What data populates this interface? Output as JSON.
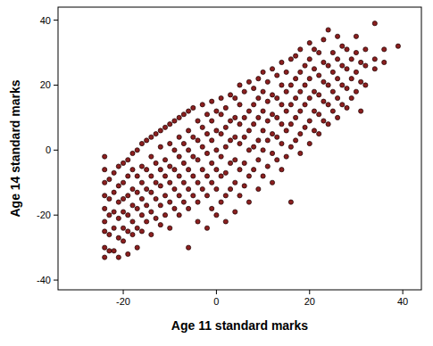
{
  "chart_data": {
    "type": "scatter",
    "x_label": "Age 11 standard marks",
    "y_label": "Age 14 standard marks",
    "color": "#8b1f1f",
    "marker": "circle",
    "grid": false,
    "xlim": [
      -34,
      44
    ],
    "ylim": [
      -43,
      44
    ],
    "xticks": [
      -20,
      0,
      20,
      40
    ],
    "yticks": [
      -40,
      -20,
      0,
      20,
      40
    ],
    "x": [
      -24,
      -24,
      -24,
      -24,
      -24,
      -24,
      -24,
      -24,
      -24,
      -23,
      -23,
      -23,
      -23,
      -23,
      -22,
      -22,
      -22,
      -22,
      -22,
      -21,
      -21,
      -21,
      -21,
      -21,
      -21,
      -20,
      -20,
      -20,
      -20,
      -20,
      -20,
      -19,
      -19,
      -19,
      -19,
      -19,
      -19,
      -18,
      -18,
      -18,
      -18,
      -18,
      -18,
      -17,
      -17,
      -17,
      -17,
      -17,
      -17,
      -16,
      -16,
      -16,
      -16,
      -16,
      -16,
      -15,
      -15,
      -15,
      -15,
      -15,
      -14,
      -14,
      -14,
      -14,
      -14,
      -14,
      -13,
      -13,
      -13,
      -13,
      -13,
      -12,
      -12,
      -12,
      -12,
      -12,
      -12,
      -11,
      -11,
      -11,
      -11,
      -11,
      -10,
      -10,
      -10,
      -10,
      -10,
      -10,
      -9,
      -9,
      -9,
      -9,
      -9,
      -8,
      -8,
      -8,
      -8,
      -8,
      -8,
      -7,
      -7,
      -7,
      -7,
      -7,
      -6,
      -6,
      -6,
      -6,
      -6,
      -6,
      -6,
      -5,
      -5,
      -5,
      -5,
      -5,
      -4,
      -4,
      -4,
      -4,
      -4,
      -4,
      -3,
      -3,
      -3,
      -3,
      -3,
      -2,
      -2,
      -2,
      -2,
      -2,
      -2,
      -1,
      -1,
      -1,
      -1,
      -1,
      -1,
      0,
      0,
      0,
      0,
      0,
      0,
      1,
      1,
      1,
      1,
      1,
      1,
      2,
      2,
      2,
      2,
      2,
      2,
      3,
      3,
      3,
      3,
      3,
      4,
      4,
      4,
      4,
      4,
      4,
      5,
      5,
      5,
      5,
      5,
      5,
      6,
      6,
      6,
      6,
      6,
      7,
      7,
      7,
      7,
      7,
      7,
      8,
      8,
      8,
      8,
      8,
      9,
      9,
      9,
      9,
      9,
      9,
      10,
      10,
      10,
      10,
      10,
      10,
      11,
      11,
      11,
      11,
      11,
      12,
      12,
      12,
      12,
      12,
      12,
      13,
      13,
      13,
      13,
      13,
      14,
      14,
      14,
      14,
      14,
      14,
      15,
      15,
      15,
      15,
      15,
      16,
      16,
      16,
      16,
      16,
      16,
      17,
      17,
      17,
      17,
      17,
      18,
      18,
      18,
      18,
      18,
      18,
      19,
      19,
      19,
      19,
      20,
      20,
      20,
      20,
      20,
      20,
      21,
      21,
      21,
      21,
      21,
      22,
      22,
      22,
      22,
      22,
      23,
      23,
      23,
      23,
      23,
      24,
      24,
      24,
      24,
      24,
      25,
      25,
      25,
      25,
      26,
      26,
      26,
      26,
      26,
      27,
      27,
      27,
      27,
      28,
      28,
      28,
      28,
      29,
      29,
      29,
      30,
      30,
      30,
      30,
      31,
      31,
      31,
      32,
      32,
      32,
      34,
      34,
      34,
      36,
      36,
      39
    ],
    "values": [
      -33,
      -30,
      -25,
      -22,
      -18,
      -14,
      -10,
      -6,
      -2,
      -31,
      -26,
      -20,
      -15,
      -9,
      -31,
      -24,
      -19,
      -13,
      -7,
      -33,
      -27,
      -21,
      -16,
      -11,
      -5,
      -28,
      -24,
      -19,
      -15,
      -10,
      -4,
      -32,
      -25,
      -20,
      -14,
      -8,
      -3,
      -26,
      -22,
      -17,
      -12,
      -6,
      -1,
      -30,
      -24,
      -18,
      -13,
      -8,
      0,
      -25,
      -20,
      -15,
      -10,
      -5,
      2,
      -22,
      -17,
      -12,
      -6,
      3,
      -26,
      -19,
      -13,
      -8,
      -2,
      4,
      -21,
      -15,
      -10,
      -4,
      5,
      -23,
      -17,
      -11,
      -6,
      1,
      6,
      -20,
      -14,
      -8,
      -3,
      7,
      -24,
      -16,
      -10,
      -5,
      2,
      8,
      -18,
      -12,
      -6,
      0,
      9,
      -20,
      -14,
      -8,
      -2,
      4,
      10,
      -16,
      -10,
      -4,
      2,
      11,
      -30,
      -18,
      -12,
      -6,
      0,
      6,
      12,
      -14,
      -8,
      -2,
      4,
      13,
      -22,
      -16,
      -10,
      -3,
      3,
      9,
      -12,
      -6,
      1,
      7,
      14,
      -24,
      -14,
      -8,
      -1,
      5,
      11,
      -18,
      -10,
      -4,
      3,
      9,
      15,
      -20,
      -12,
      -6,
      0,
      6,
      12,
      -16,
      -8,
      -2,
      5,
      11,
      16,
      -22,
      -14,
      -7,
      1,
      7,
      13,
      -12,
      -4,
      3,
      9,
      17,
      -19,
      -10,
      -3,
      4,
      10,
      16,
      -14,
      -6,
      2,
      8,
      14,
      20,
      -11,
      -4,
      4,
      10,
      18,
      -16,
      -8,
      0,
      6,
      12,
      21,
      -6,
      1,
      8,
      14,
      19,
      -12,
      -3,
      3,
      10,
      16,
      22,
      -8,
      0,
      6,
      12,
      18,
      24,
      -5,
      3,
      9,
      15,
      21,
      -10,
      -1,
      5,
      11,
      17,
      25,
      -3,
      4,
      10,
      16,
      23,
      -6,
      2,
      8,
      14,
      20,
      27,
      -2,
      6,
      12,
      18,
      24,
      -16,
      1,
      8,
      14,
      20,
      28,
      3,
      10,
      16,
      22,
      29,
      -1,
      5,
      12,
      18,
      24,
      31,
      7,
      14,
      20,
      26,
      2,
      9,
      16,
      22,
      28,
      33,
      6,
      12,
      18,
      25,
      31,
      5,
      11,
      17,
      23,
      30,
      9,
      15,
      21,
      27,
      34,
      8,
      14,
      20,
      26,
      37,
      12,
      18,
      24,
      30,
      10,
      16,
      22,
      28,
      35,
      14,
      20,
      26,
      32,
      13,
      19,
      25,
      31,
      16,
      22,
      28,
      18,
      24,
      30,
      35,
      12,
      21,
      27,
      20,
      26,
      31,
      25,
      28,
      39,
      27,
      31,
      32
    ]
  }
}
